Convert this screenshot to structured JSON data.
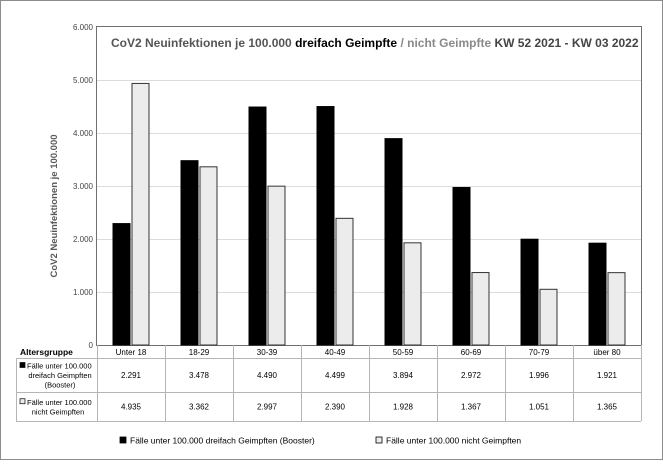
{
  "chart_data": {
    "type": "bar",
    "title_part1": "CoV2 Neuinfektionen je 100.000 ",
    "title_part2": "dreifach Geimpfte",
    "title_part3": " / nicht Geimpfte",
    "title_part4": " KW 52 2021 - KW 03 2022",
    "ylabel": "CoV2 Neuinfektionen  je 100.000",
    "ylim": [
      0,
      6000
    ],
    "yticks": [
      {
        "value": 0,
        "label": "0"
      },
      {
        "value": 1000,
        "label": "1.000"
      },
      {
        "value": 2000,
        "label": "2.000"
      },
      {
        "value": 3000,
        "label": "3.000"
      },
      {
        "value": 4000,
        "label": "4.000"
      },
      {
        "value": 5000,
        "label": "5.000"
      },
      {
        "value": 6000,
        "label": "6.000"
      }
    ],
    "grid": true,
    "legend_position": "bottom",
    "table_header": "Altersgruppe",
    "categories": [
      "Unter 18",
      "18-29",
      "30-39",
      "40-49",
      "50-59",
      "60-69",
      "70-79",
      "über 80"
    ],
    "series": [
      {
        "name": "Fälle unter 100.000 dreifach Geimpften (Booster)",
        "row_label": [
          "Fälle unter 100.000",
          "dreifach Geimpften",
          "(Booster)"
        ],
        "color": "#000000",
        "values": [
          2291,
          3478,
          4490,
          4499,
          3894,
          2972,
          1996,
          1921
        ],
        "value_labels": [
          "2.291",
          "3.478",
          "4.490",
          "4.499",
          "3.894",
          "2.972",
          "1.996",
          "1.921"
        ]
      },
      {
        "name": "Fälle unter 100.000 nicht Geimpften",
        "row_label": [
          "Fälle unter 100.000",
          "nicht Geimpften"
        ],
        "color": "#ececec",
        "values": [
          4935,
          3362,
          2997,
          2390,
          1928,
          1367,
          1051,
          1365
        ],
        "value_labels": [
          "4.935",
          "3.362",
          "2.997",
          "2.390",
          "1.928",
          "1.367",
          "1.051",
          "1.365"
        ]
      }
    ]
  }
}
